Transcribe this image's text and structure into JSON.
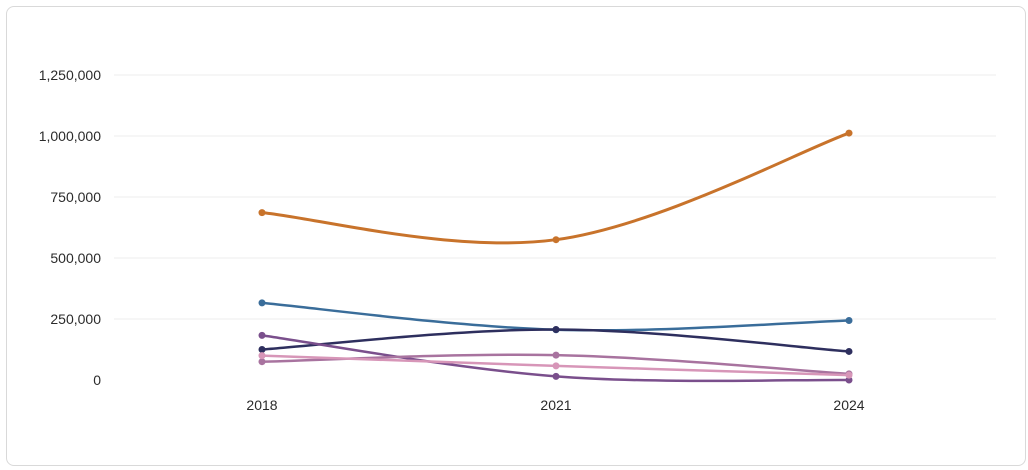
{
  "chart_data": {
    "type": "line",
    "title": "",
    "xlabel": "",
    "ylabel": "",
    "x": [
      "2018",
      "2021",
      "2024"
    ],
    "y_ticks": [
      0,
      250000,
      500000,
      750000,
      1000000,
      1250000
    ],
    "y_tick_labels": [
      "0",
      "250,000",
      "500,000",
      "750,000",
      "1,000,000",
      "1,250,000"
    ],
    "ylim": [
      0,
      1250000
    ],
    "grid": true,
    "legend": "none",
    "series": [
      {
        "color": "#c8732b",
        "values": [
          686000,
          575000,
          1012000
        ]
      },
      {
        "color": "#3a6d9a",
        "values": [
          316000,
          206000,
          244000
        ]
      },
      {
        "color": "#2e2f5e",
        "values": [
          125000,
          207000,
          117000
        ]
      },
      {
        "color": "#7a4f8c",
        "values": [
          183000,
          15000,
          0
        ]
      },
      {
        "color": "#a8739f",
        "values": [
          75000,
          102000,
          25000
        ]
      },
      {
        "color": "#d796b8",
        "values": [
          100000,
          58000,
          20000
        ]
      }
    ]
  }
}
